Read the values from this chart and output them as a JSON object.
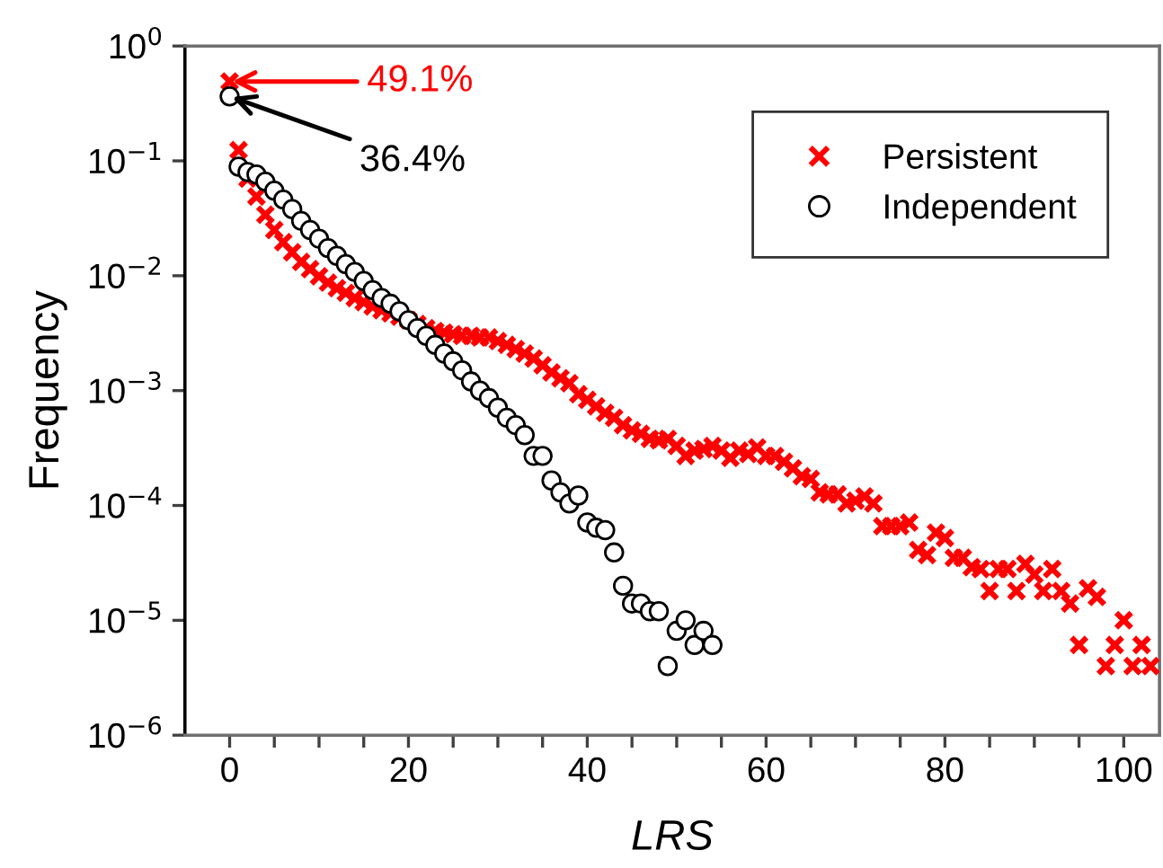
{
  "chart_data": {
    "type": "scatter",
    "xlabel": "LRS",
    "ylabel": "Frequency",
    "log": "y",
    "legend": "top right",
    "grid": false,
    "xlim": [
      -5,
      104
    ],
    "xticks": [
      0,
      {
        "value": 5,
        "label": null
      },
      {
        "value": 10,
        "label": null
      },
      {
        "value": 15,
        "label": null
      },
      20,
      {
        "value": 25,
        "label": null
      },
      {
        "value": 30,
        "label": null
      },
      {
        "value": 35,
        "label": null
      },
      40,
      {
        "value": 45,
        "label": null
      },
      {
        "value": 50,
        "label": null
      },
      {
        "value": 55,
        "label": null
      },
      60,
      {
        "value": 65,
        "label": null
      },
      {
        "value": 70,
        "label": null
      },
      {
        "value": 75,
        "label": null
      },
      80,
      {
        "value": 85,
        "label": null
      },
      {
        "value": 90,
        "label": null
      },
      {
        "value": 95,
        "label": null
      },
      100
    ],
    "ylim": [
      1e-06,
      1
    ],
    "yticks": [
      {
        "value": 1e-06,
        "label": "10$^{−6}$"
      },
      {
        "value": 1e-05,
        "label": "10$^{−5}$"
      },
      {
        "value": 0.0001,
        "label": "10$^{−4}$"
      },
      {
        "value": 0.001,
        "label": "10$^{−3}$"
      },
      {
        "value": 0.01,
        "label": "10$^{−2}$"
      },
      {
        "value": 0.1,
        "label": "10$^{−1}$"
      },
      {
        "value": 1,
        "label": "10$^{0}$"
      }
    ],
    "series": [
      {
        "name": "Persistent",
        "color": "#ff0000",
        "marker": "cross",
        "x": [
          0,
          1,
          2,
          3,
          4,
          5,
          6,
          7,
          8,
          9,
          10,
          11,
          12,
          13,
          14,
          15,
          16,
          17,
          18,
          19,
          20,
          21,
          22,
          23,
          24,
          25,
          26,
          27,
          28,
          29,
          30,
          31,
          32,
          33,
          34,
          35,
          36,
          37,
          38,
          39,
          40,
          41,
          42,
          43,
          44,
          45,
          46,
          47,
          48,
          49,
          50,
          51,
          52,
          53,
          54,
          55,
          56,
          57,
          58,
          59,
          60,
          61,
          62,
          63,
          64,
          65,
          66,
          67,
          68,
          69,
          70,
          71,
          72,
          73,
          74,
          75,
          76,
          77,
          78,
          79,
          80,
          81,
          82,
          83,
          84,
          85,
          86,
          87,
          88,
          89,
          90,
          91,
          92,
          93,
          94,
          95,
          96,
          97,
          98,
          99,
          100,
          101,
          102,
          103
        ],
        "values": [
          0.491,
          0.124,
          0.07,
          0.049,
          0.034,
          0.025,
          0.0196,
          0.016,
          0.0132,
          0.0114,
          0.0099,
          0.0087,
          0.0078,
          0.0071,
          0.0064,
          0.0059,
          0.0054,
          0.005,
          0.0047,
          0.0044,
          0.0041,
          0.0038,
          0.0035,
          0.0033,
          0.0032,
          0.0031,
          0.003,
          0.003,
          0.0029,
          0.0029,
          0.0027,
          0.0025,
          0.0023,
          0.0021,
          0.0019,
          0.00166,
          0.00144,
          0.00128,
          0.00116,
          0.00093,
          0.00083,
          0.00073,
          0.00064,
          0.00058,
          0.0005,
          0.00045,
          0.00042,
          0.00038,
          0.00037,
          0.00038,
          0.00033,
          0.00027,
          0.0003,
          0.00031,
          0.00033,
          0.0003,
          0.00026,
          0.0003,
          0.00028,
          0.00032,
          0.00027,
          0.00027,
          0.00024,
          0.00021,
          0.00018,
          0.00017,
          0.00013,
          0.000125,
          0.000125,
          0.000104,
          0.00011,
          0.00012,
          0.000104,
          6.6e-05,
          6.6e-05,
          6.6e-05,
          7.1e-05,
          4.1e-05,
          3.7e-05,
          5.8e-05,
          5.2e-05,
          3.5e-05,
          3.5e-05,
          2.9e-05,
          2.8e-05,
          1.8e-05,
          2.8e-05,
          2.8e-05,
          1.8e-05,
          3.1e-05,
          2.5e-05,
          1.8e-05,
          2.8e-05,
          1.8e-05,
          1.4e-05,
          6.1e-06,
          1.9e-05,
          1.6e-05,
          4e-06,
          6.1e-06,
          1e-05,
          4e-06,
          6.1e-06,
          4e-06
        ]
      },
      {
        "name": "Independent",
        "color": "#000000",
        "marker": "circle",
        "x": [
          0,
          1,
          2,
          3,
          4,
          5,
          6,
          7,
          8,
          9,
          10,
          11,
          12,
          13,
          14,
          15,
          16,
          17,
          18,
          19,
          20,
          21,
          22,
          23,
          24,
          25,
          26,
          27,
          28,
          29,
          30,
          31,
          32,
          33,
          34,
          35,
          36,
          37,
          38,
          39,
          40,
          41,
          42,
          43,
          44,
          45,
          46,
          47,
          48,
          49,
          50,
          51,
          52,
          53,
          54
        ],
        "values": [
          0.364,
          0.089,
          0.08,
          0.076,
          0.066,
          0.055,
          0.046,
          0.038,
          0.03,
          0.025,
          0.021,
          0.0174,
          0.0149,
          0.0126,
          0.0108,
          0.009,
          0.0075,
          0.0064,
          0.0057,
          0.0049,
          0.0041,
          0.0035,
          0.003,
          0.0025,
          0.0021,
          0.0018,
          0.0015,
          0.0012,
          0.001,
          0.00086,
          0.00071,
          0.00058,
          0.0005,
          0.00041,
          0.00027,
          0.00027,
          0.000165,
          0.00013,
          0.000104,
          0.000122,
          7.1e-05,
          6.4e-05,
          6.1e-05,
          3.9e-05,
          2e-05,
          1.4e-05,
          1.4e-05,
          1.2e-05,
          1.2e-05,
          4e-06,
          8.1e-06,
          1e-05,
          6.1e-06,
          8.1e-06,
          6.1e-06
        ]
      }
    ],
    "annotations": [
      "49.1%",
      {
        "text": "36.4%",
        "x": 0,
        "y": 0.364
      }
    ]
  }
}
